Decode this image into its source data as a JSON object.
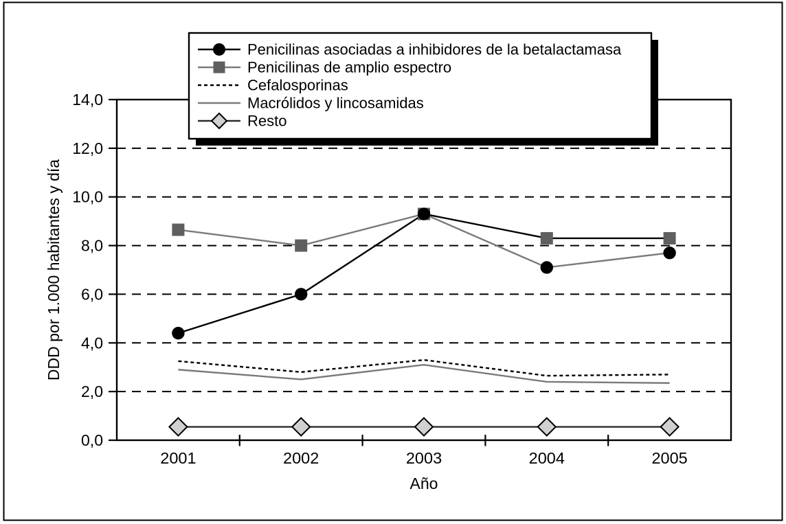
{
  "chart_data": {
    "type": "line",
    "title": "",
    "xlabel": "Año",
    "ylabel": "DDD por 1.000 habitantes y día",
    "x_labels": [
      "2001",
      "2002",
      "2003",
      "2004",
      "2005"
    ],
    "ylim": [
      0,
      14
    ],
    "ytick_step": 2,
    "ytick_labels": [
      "0,0",
      "2,0",
      "4,0",
      "6,0",
      "8,0",
      "10,0",
      "12,0",
      "14,0"
    ],
    "grid": "horizontal dashed black lines at 2,0 through 12,0",
    "legend_position": "top-center overlapping plot, white box with black border and black drop shadow",
    "drawing_note": "Series lines cross at the shared 2003 peak (9,3): after 2003 the black line runs through the gray square markers (8,3 / 8,3) and the gray line runs through the black circle markers (7,1 / 7,7), exactly as drawn in the source figure.",
    "colors": {
      "black_line": "#000000",
      "gray_line": "#7a7a7a",
      "square_fill": "#5f5f5f",
      "diamond_fill": "#d0d0d0",
      "resto_line": "#2b2b2b"
    },
    "series": [
      {
        "name": "Penicilinas asociadas a inhibidores de la betalactamasa",
        "marker": "circle",
        "marker_color": "#000000",
        "marker_values": [
          4.4,
          6.0,
          9.3,
          7.1,
          7.7
        ],
        "line_color": "#000000",
        "line_style": "solid",
        "line_values": [
          4.4,
          6.0,
          9.3,
          8.3,
          8.3
        ]
      },
      {
        "name": "Penicilinas de amplio espectro",
        "marker": "square",
        "marker_color": "#5f5f5f",
        "marker_values": [
          8.65,
          8.0,
          9.3,
          8.3,
          8.3
        ],
        "line_color": "#7a7a7a",
        "line_style": "solid",
        "line_values": [
          8.65,
          8.0,
          9.3,
          7.1,
          7.7
        ]
      },
      {
        "name": "Cefalosporinas",
        "marker": "none",
        "line_color": "#000000",
        "line_style": "dotted",
        "line_values": [
          3.25,
          2.8,
          3.3,
          2.65,
          2.7
        ]
      },
      {
        "name": "Macrólidos y lincosamidas",
        "marker": "none",
        "line_color": "#7a7a7a",
        "line_style": "solid",
        "line_values": [
          2.9,
          2.5,
          3.1,
          2.4,
          2.35
        ]
      },
      {
        "name": "Resto",
        "marker": "diamond",
        "marker_color": "#d0d0d0",
        "marker_stroke": "#000000",
        "marker_values": [
          0.55,
          0.55,
          0.55,
          0.55,
          0.55
        ],
        "line_color": "#2b2b2b",
        "line_style": "solid",
        "line_values": [
          0.55,
          0.55,
          0.55,
          0.55,
          0.55
        ]
      }
    ]
  }
}
